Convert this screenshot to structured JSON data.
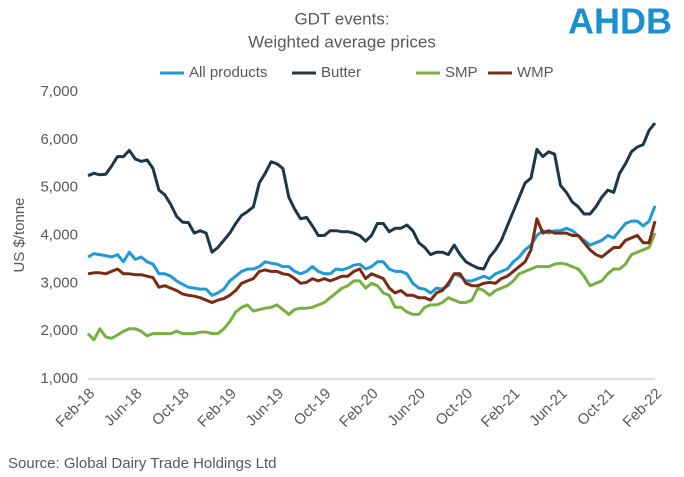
{
  "chart_data": {
    "type": "line",
    "title": "GDT events:",
    "subtitle": "Weighted average prices",
    "logo": "AHDB",
    "y_label": "US $/tonne",
    "source": "Source: Global Dairy Trade Holdings Ltd",
    "categories": [
      "Feb-18",
      null,
      null,
      null,
      null,
      null,
      null,
      null,
      "Jun-18",
      null,
      null,
      null,
      null,
      null,
      null,
      null,
      "Oct-18",
      null,
      null,
      null,
      null,
      null,
      null,
      null,
      "Feb-19",
      null,
      null,
      null,
      null,
      null,
      null,
      null,
      "Jun-19",
      null,
      null,
      null,
      null,
      null,
      null,
      null,
      "Oct-19",
      null,
      null,
      null,
      null,
      null,
      null,
      null,
      "Feb-20",
      null,
      null,
      null,
      null,
      null,
      null,
      null,
      "Jun-20",
      null,
      null,
      null,
      null,
      null,
      null,
      null,
      "Oct-20",
      null,
      null,
      null,
      null,
      null,
      null,
      null,
      "Feb-21",
      null,
      null,
      null,
      null,
      null,
      null,
      null,
      "Jun-21",
      null,
      null,
      null,
      null,
      null,
      null,
      null,
      "Oct-21",
      null,
      null,
      null,
      null,
      null,
      null,
      null,
      "Feb-22"
    ],
    "series": [
      {
        "name": "All products",
        "color": "#1f9ad6",
        "values": [
          3550,
          3620,
          3600,
          3580,
          3550,
          3600,
          3450,
          3650,
          3500,
          3550,
          3450,
          3400,
          3200,
          3200,
          3150,
          3050,
          2980,
          2920,
          2900,
          2880,
          2880,
          2750,
          2800,
          2880,
          3050,
          3150,
          3250,
          3300,
          3300,
          3350,
          3450,
          3420,
          3400,
          3350,
          3350,
          3250,
          3200,
          3250,
          3350,
          3250,
          3200,
          3200,
          3300,
          3280,
          3320,
          3380,
          3400,
          3300,
          3350,
          3450,
          3450,
          3300,
          3250,
          3250,
          3200,
          3000,
          2900,
          2880,
          2800,
          2900,
          2880,
          2950,
          3200,
          3150,
          3050,
          3050,
          3100,
          3150,
          3100,
          3200,
          3250,
          3300,
          3450,
          3550,
          3700,
          3800,
          4000,
          4100,
          4050,
          4100,
          4100,
          4150,
          4100,
          4000,
          3900,
          3800,
          3850,
          3900,
          4000,
          3950,
          4100,
          4250,
          4300,
          4300,
          4200,
          4300,
          4620
        ]
      },
      {
        "name": "Butter",
        "color": "#1d3747",
        "values": [
          5250,
          5300,
          5270,
          5280,
          5450,
          5650,
          5650,
          5780,
          5600,
          5550,
          5580,
          5400,
          4950,
          4850,
          4650,
          4400,
          4280,
          4270,
          4050,
          4100,
          4050,
          3650,
          3750,
          3900,
          4050,
          4250,
          4420,
          4500,
          4600,
          5100,
          5300,
          5540,
          5500,
          5400,
          4800,
          4550,
          4350,
          4380,
          4200,
          4000,
          4000,
          4100,
          4100,
          4080,
          4080,
          4050,
          4000,
          3880,
          4000,
          4250,
          4250,
          4080,
          4150,
          4150,
          4220,
          4100,
          3850,
          3750,
          3600,
          3650,
          3650,
          3600,
          3800,
          3600,
          3450,
          3380,
          3320,
          3300,
          3550,
          3700,
          3900,
          4200,
          4500,
          4800,
          5100,
          5200,
          5800,
          5650,
          5750,
          5700,
          5050,
          4900,
          4700,
          4600,
          4450,
          4450,
          4600,
          4800,
          4950,
          4900,
          5300,
          5500,
          5750,
          5850,
          5900,
          6200,
          6350
        ]
      },
      {
        "name": "SMP",
        "color": "#77b041",
        "values": [
          1950,
          1820,
          2050,
          1880,
          1850,
          1920,
          2000,
          2050,
          2050,
          2000,
          1900,
          1950,
          1950,
          1950,
          1950,
          2000,
          1950,
          1950,
          1950,
          1980,
          1980,
          1950,
          1950,
          2050,
          2200,
          2400,
          2500,
          2550,
          2420,
          2450,
          2480,
          2500,
          2550,
          2450,
          2350,
          2450,
          2480,
          2480,
          2500,
          2550,
          2600,
          2700,
          2800,
          2900,
          2950,
          3050,
          3050,
          2900,
          3000,
          2950,
          2800,
          2750,
          2500,
          2500,
          2400,
          2350,
          2350,
          2500,
          2550,
          2550,
          2600,
          2700,
          2650,
          2600,
          2600,
          2650,
          2900,
          2850,
          2750,
          2850,
          2900,
          2950,
          3050,
          3200,
          3250,
          3300,
          3350,
          3350,
          3350,
          3400,
          3420,
          3400,
          3350,
          3300,
          3150,
          2950,
          3000,
          3050,
          3200,
          3300,
          3300,
          3400,
          3600,
          3650,
          3700,
          3750,
          4050
        ]
      },
      {
        "name": "WMP",
        "color": "#7b2a14",
        "values": [
          3200,
          3220,
          3220,
          3200,
          3250,
          3300,
          3200,
          3200,
          3180,
          3180,
          3150,
          3120,
          2920,
          2950,
          2900,
          2850,
          2780,
          2750,
          2730,
          2700,
          2650,
          2600,
          2650,
          2680,
          2750,
          2850,
          3000,
          3050,
          3100,
          3250,
          3280,
          3250,
          3250,
          3200,
          3180,
          3100,
          3000,
          3020,
          3100,
          3050,
          3100,
          3050,
          3100,
          3150,
          3150,
          3250,
          3300,
          3100,
          3200,
          3150,
          3100,
          2900,
          2800,
          2850,
          2750,
          2750,
          2700,
          2700,
          2650,
          2800,
          2850,
          3000,
          3200,
          3200,
          3000,
          2950,
          2950,
          3000,
          3020,
          3000,
          3100,
          3150,
          3250,
          3350,
          3450,
          3700,
          4350,
          4050,
          4100,
          4050,
          4050,
          4050,
          4000,
          4000,
          3850,
          3700,
          3600,
          3550,
          3650,
          3750,
          3750,
          3900,
          3950,
          4000,
          3850,
          3850,
          4300
        ]
      }
    ],
    "ylim": [
      1000,
      7000
    ],
    "yticks": [
      {
        "value": 1000,
        "label": "1,000"
      },
      {
        "value": 2000,
        "label": "2,000"
      },
      {
        "value": 3000,
        "label": "3,000"
      },
      {
        "value": 4000,
        "label": "4,000"
      },
      {
        "value": 5000,
        "label": "5,000"
      },
      {
        "value": 6000,
        "label": "6,000"
      },
      {
        "value": 7000,
        "label": "7,000"
      }
    ],
    "grid": false,
    "legend": "top"
  }
}
